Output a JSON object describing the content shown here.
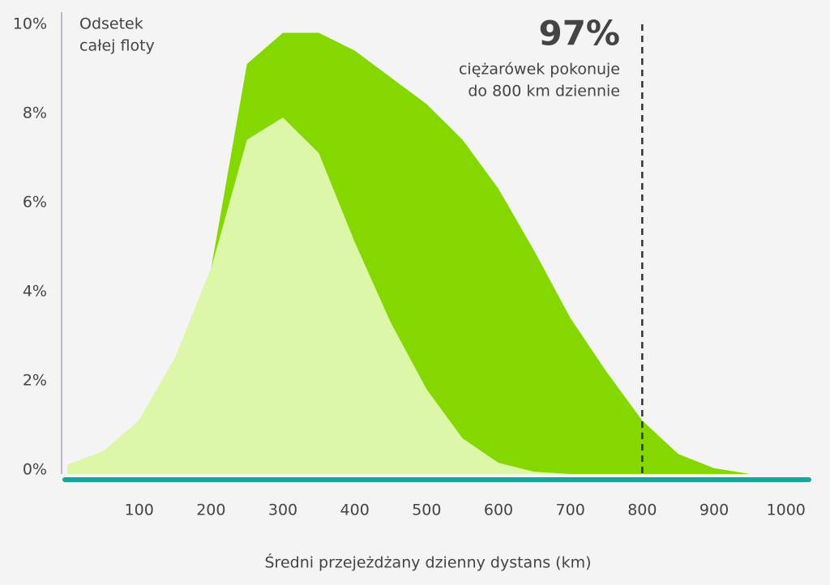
{
  "chart_data": {
    "type": "area",
    "y_label": [
      "Odsetek",
      "całej floty"
    ],
    "x_label": "Średni przejeżdżany dzienny dystans (km)",
    "annotation": {
      "value_text": "97%",
      "lines": [
        "ciężarówek pokonuje",
        "do 800 km dziennie"
      ],
      "x": 800
    },
    "x": [
      0,
      50,
      100,
      150,
      200,
      250,
      300,
      350,
      400,
      450,
      500,
      550,
      600,
      650,
      700,
      750,
      800,
      850,
      900,
      950,
      1000
    ],
    "series": [
      {
        "color": "#84d800",
        "values": [
          0.2,
          0.5,
          1.2,
          2.6,
          4.6,
          9.2,
          9.9,
          9.9,
          9.5,
          8.9,
          8.3,
          7.5,
          6.4,
          5.0,
          3.5,
          2.3,
          1.2,
          0.45,
          0.13,
          0,
          0
        ]
      },
      {
        "color": "#ddf7a8",
        "values": [
          0.2,
          0.5,
          1.2,
          2.6,
          4.6,
          7.5,
          8.0,
          7.2,
          5.2,
          3.4,
          1.9,
          0.8,
          0.25,
          0.05,
          0,
          0,
          0,
          0,
          0,
          0,
          0
        ]
      }
    ],
    "xlim": [
      0,
      1030
    ],
    "ylim": [
      0,
      10
    ],
    "xticks": [
      100,
      200,
      300,
      400,
      500,
      600,
      700,
      800,
      900,
      1000
    ],
    "yticks": [
      {
        "value": 0,
        "label": "0%"
      },
      {
        "value": 2,
        "label": "2%"
      },
      {
        "value": 4,
        "label": "4%"
      },
      {
        "value": 6,
        "label": "6%"
      },
      {
        "value": 8,
        "label": "8%"
      },
      {
        "value": 10,
        "label": "10%"
      }
    ],
    "baseline_color": "#1aa59a"
  }
}
